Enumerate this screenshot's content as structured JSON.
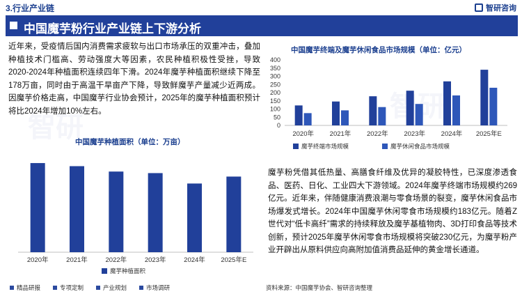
{
  "section_title": "3.行业产业链",
  "logo_text": "智研咨询",
  "main_title": "中国魔芋粉行业产业链上下游分析",
  "paragraph_left": "近年来，受疫情后国内消费需求疲软与出口市场承压的双重冲击，叠加种植技术门槛高、劳动强度大等因素，农民种植积极性受挫，导致2020-2024年种植面积连续四年下滑。2024年魔芋种植面积继续下降至178万亩，同时由于高温干旱亩产下降，导致鲜魔芋产量减少近两成。因魔芋价格走高，中国魔芋行业协会预计，2025年的魔芋种植面积预计将比2024年增加10%左右。",
  "paragraph_right": "魔芋粉凭借其低热量、高膳食纤维及优异的凝胶特性，已深度渗透食品、医药、日化、工业四大下游领域。2024年魔芋终端市场规模约269亿元。近年来，伴随健康消费浪潮与零食场景的裂变，魔芋休闲食品市场爆发式增长。2024年中国魔芋休闲零食市场规模约183亿元。随着Z世代对“低卡高纤”需求的持续释放及魔芋基植物肉、3D打印食品等技术创新，预计2025年魔芋休闲零食市场规模将突破230亿元，为魔芋粉产业开辟出从原料供应向高附加值消费品延伸的黄金增长通道。",
  "footer": {
    "items": [
      "精品研报",
      "专项定制",
      "产业规划",
      "市场调研"
    ],
    "source": "资料来源：中国魔芋协会、智研咨询整理"
  },
  "colors": {
    "primary": "#21409a",
    "secondary": "#2e57b9",
    "text_blue": "#1b3f8f"
  },
  "chart_data": [
    {
      "type": "bar",
      "title": "中国魔芋种植面积（单位：万亩）",
      "categories": [
        "2020年",
        "2021年",
        "2022年",
        "2023年",
        "2024年",
        "2025年E"
      ],
      "series": [
        {
          "name": "魔芋种植面积",
          "values": [
            231,
            223,
            209,
            205,
            178,
            196
          ]
        }
      ],
      "show_y_axis": false,
      "ylim": [
        0,
        260
      ],
      "grid": false,
      "legend": "bottom"
    },
    {
      "type": "bar",
      "title": "中国魔芋终端及魔芋休闲食品市场规模（单位：亿元）",
      "categories": [
        "2020年",
        "2021年",
        "2022年",
        "2023年",
        "2024年",
        "2025年E"
      ],
      "series": [
        {
          "name": "魔芋终端市场规模",
          "values": [
            122,
            146,
            178,
            212,
            269,
            340
          ]
        },
        {
          "name": "魔芋休闲食品市场规模",
          "values": [
            75,
            92,
            112,
            131,
            183,
            230
          ]
        }
      ],
      "yticks": [
        "0",
        "50",
        "100",
        "150",
        "200",
        "250",
        "300",
        "350",
        "400"
      ],
      "ylim": [
        0,
        400
      ],
      "grid": false,
      "legend": "bottom"
    }
  ]
}
